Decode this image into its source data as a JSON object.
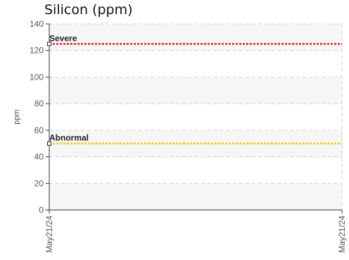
{
  "chart_data": {
    "type": "line",
    "title": "Silicon (ppm)",
    "xlabel": "",
    "ylabel": "ppm",
    "ylim": [
      0,
      140
    ],
    "yticks": [
      0,
      20,
      40,
      60,
      80,
      100,
      120,
      140
    ],
    "xticks": [
      "May21/24",
      "May21/24"
    ],
    "grid": true,
    "thresholds": [
      {
        "name": "Severe",
        "value": 125,
        "color": "#d9252b"
      },
      {
        "name": "Abnormal",
        "value": 50,
        "color": "#f2c318"
      }
    ],
    "series": []
  }
}
